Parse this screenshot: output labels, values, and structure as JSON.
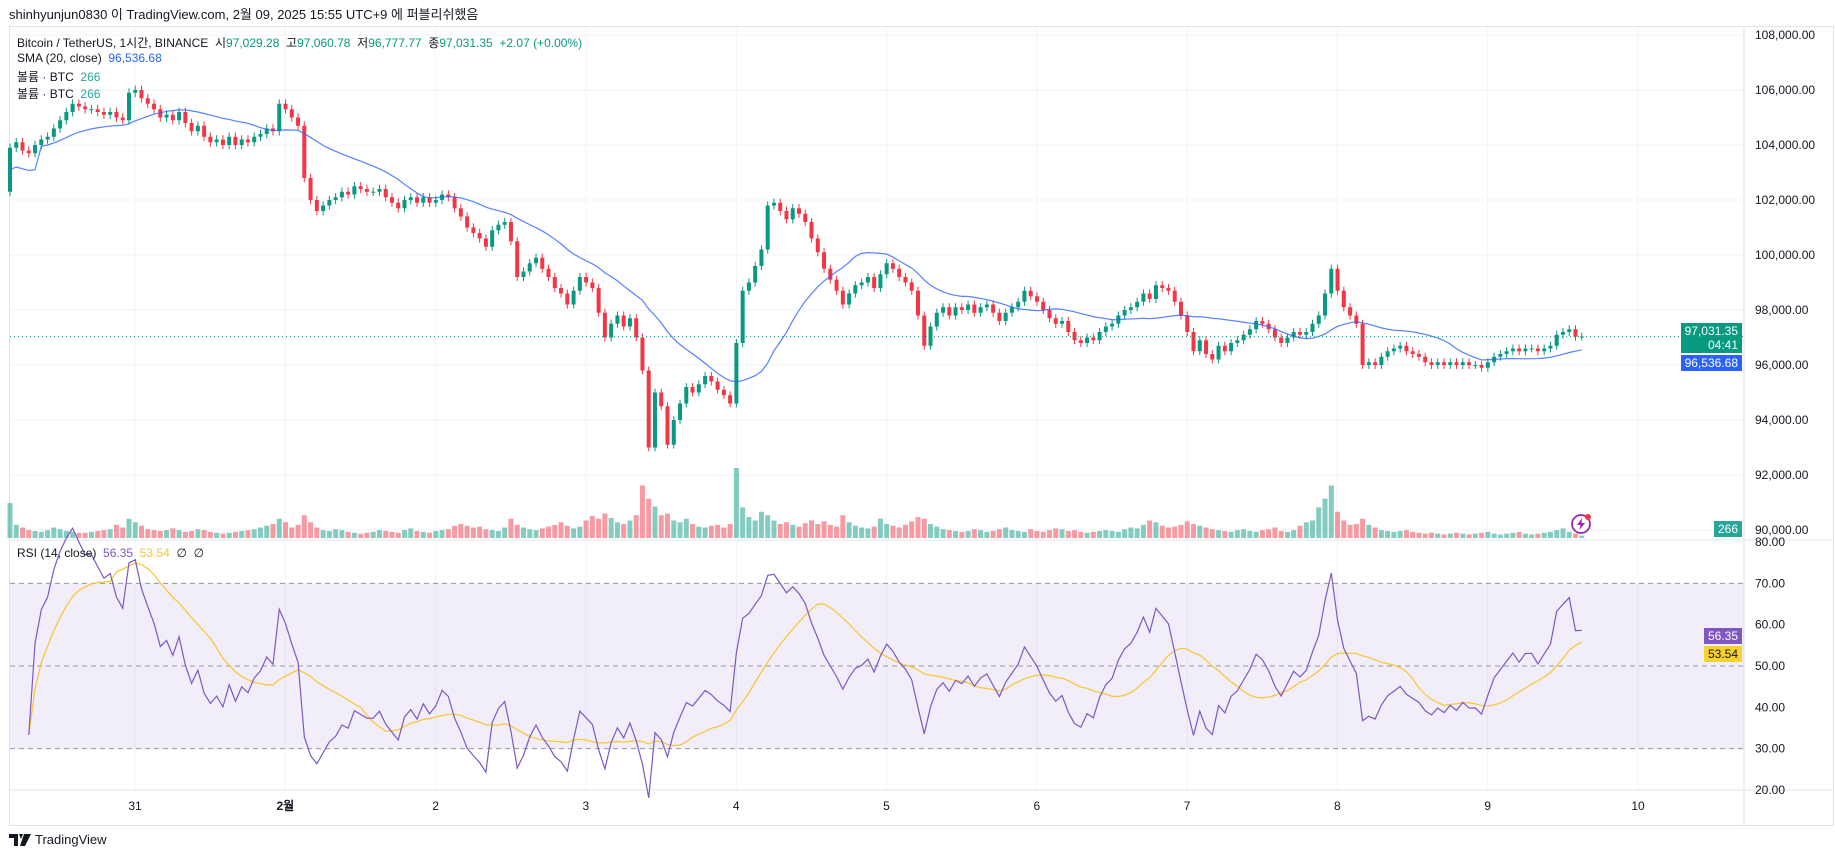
{
  "published": "shinhyunjun0830 이 TradingView.com, 2월 09, 2025 15:55 UTC+9 에 퍼블리쉬했음",
  "legend": {
    "symbol": "Bitcoin / TetherUS, 1시간, BINANCE",
    "open_label": "시",
    "open": "97,029.28",
    "high_label": "고",
    "high": "97,060.78",
    "low_label": "저",
    "low": "96,777.77",
    "close_label": "종",
    "close": "97,031.35",
    "change": "+2.07 (+0.00%)",
    "sma_label": "SMA (20, close)",
    "sma_value": "96,536.68",
    "volume_label": "볼륨 · BTC",
    "volume_value": "266",
    "volume_label2": "볼륨 · BTC",
    "volume_value2": "266",
    "rsi_label": "RSI (14, close)",
    "rsi_value": "56.35",
    "rsi_ma_value": "53.54",
    "rsi_extra1": "∅",
    "rsi_extra2": "∅"
  },
  "price_tags": {
    "last": "97,031.35",
    "countdown": "04:41",
    "sma": "96,536.68",
    "volume": "266",
    "rsi": "56.35",
    "rsi_ma": "53.54"
  },
  "icons": {
    "alert": "lightning-icon",
    "logo": "tradingview-logo-icon"
  },
  "logo_text": "TradingView",
  "colors": {
    "up": "#089981",
    "down": "#f23645",
    "sma": "#2962ff",
    "rsi": "#7e57c2",
    "rsi_ma": "#f7c52f",
    "rsi_band": "#7e57c2"
  },
  "chart_data": {
    "type": "candlestick",
    "interval": "1h",
    "first_open": 102300,
    "closes": [
      103900,
      104100,
      103800,
      103700,
      104000,
      104200,
      104300,
      104600,
      104900,
      105200,
      105500,
      105400,
      105300,
      105300,
      105200,
      105100,
      105200,
      105000,
      104900,
      105900,
      106000,
      105700,
      105500,
      105300,
      105000,
      105100,
      104900,
      105200,
      104800,
      104500,
      104700,
      104300,
      104100,
      104200,
      104000,
      104300,
      104000,
      104200,
      104100,
      104300,
      104400,
      104600,
      104500,
      105500,
      105300,
      105000,
      104700,
      102800,
      102000,
      101600,
      101800,
      102000,
      102100,
      102300,
      102200,
      102500,
      102400,
      102300,
      102300,
      102400,
      102100,
      101900,
      101700,
      102000,
      102100,
      101900,
      102100,
      101900,
      102000,
      102200,
      102100,
      101700,
      101400,
      101000,
      100800,
      100600,
      100300,
      100900,
      101100,
      101200,
      100500,
      99200,
      99400,
      99700,
      99900,
      99500,
      99200,
      98800,
      98600,
      98200,
      98700,
      99200,
      99000,
      98800,
      97900,
      97000,
      97500,
      97800,
      97400,
      97700,
      97000,
      95800,
      93000,
      95000,
      94500,
      93100,
      94000,
      94600,
      95200,
      95000,
      95300,
      95600,
      95400,
      95100,
      94900,
      94600,
      96800,
      98700,
      99000,
      99600,
      100200,
      101800,
      101900,
      101600,
      101300,
      101700,
      101500,
      101200,
      100600,
      100100,
      99500,
      99100,
      98700,
      98200,
      98600,
      98900,
      99000,
      99200,
      98800,
      99300,
      99700,
      99500,
      99200,
      99000,
      98700,
      97800,
      96700,
      97400,
      97900,
      98100,
      97800,
      98100,
      98000,
      98200,
      97900,
      98100,
      98200,
      97900,
      97600,
      97900,
      98100,
      98300,
      98700,
      98500,
      98300,
      98000,
      97700,
      97500,
      97600,
      97200,
      96900,
      96800,
      97000,
      96900,
      97200,
      97400,
      97500,
      97800,
      98000,
      98100,
      98300,
      98600,
      98400,
      98900,
      98800,
      98700,
      98300,
      97800,
      97200,
      96500,
      96900,
      96400,
      96200,
      96700,
      96500,
      96800,
      96900,
      97100,
      97300,
      97600,
      97500,
      97300,
      97000,
      96800,
      97000,
      97200,
      97100,
      97200,
      97500,
      97800,
      98600,
      99500,
      98700,
      98100,
      97800,
      97500,
      96000,
      96100,
      96000,
      96300,
      96500,
      96600,
      96700,
      96500,
      96400,
      96300,
      96100,
      96000,
      96100,
      96000,
      96100,
      96000,
      96100,
      96000,
      96000,
      95900,
      96100,
      96300,
      96400,
      96500,
      96600,
      96500,
      96600,
      96600,
      96500,
      96600,
      96700,
      97100,
      97200,
      97300,
      97029.28,
      97031.35
    ],
    "volumes": [
      4000,
      1500,
      1200,
      900,
      800,
      700,
      900,
      1200,
      1000,
      800,
      700,
      600,
      600,
      700,
      800,
      900,
      1000,
      1500,
      1200,
      2200,
      1800,
      1400,
      1000,
      900,
      800,
      900,
      1100,
      900,
      700,
      800,
      1000,
      900,
      700,
      600,
      500,
      600,
      700,
      800,
      900,
      1000,
      1200,
      1400,
      1600,
      2200,
      1800,
      1200,
      1500,
      2600,
      1800,
      1200,
      900,
      800,
      1000,
      900,
      700,
      600,
      500,
      600,
      700,
      900,
      800,
      700,
      600,
      900,
      1100,
      800,
      700,
      600,
      800,
      900,
      1000,
      1400,
      1600,
      1400,
      1200,
      1300,
      1000,
      900,
      800,
      1200,
      2200,
      1500,
      1200,
      1000,
      900,
      1100,
      1300,
      1500,
      1800,
      1400,
      1100,
      1300,
      2000,
      2500,
      2200,
      2800,
      2300,
      1800,
      1600,
      2000,
      2600,
      6000,
      4500,
      3600,
      2600,
      2800,
      2000,
      1800,
      2200,
      1600,
      1300,
      1200,
      1400,
      1500,
      1200,
      1600,
      8000,
      3500,
      2400,
      2000,
      3000,
      2600,
      2000,
      1600,
      1800,
      1500,
      1300,
      1700,
      2000,
      1600,
      1900,
      1500,
      1300,
      2600,
      1800,
      1400,
      1200,
      1100,
      1300,
      2200,
      1600,
      1400,
      1200,
      1500,
      1900,
      2400,
      2200,
      1600,
      1300,
      1000,
      900,
      800,
      700,
      800,
      1000,
      900,
      700,
      800,
      1000,
      1200,
      900,
      800,
      700,
      1000,
      800,
      700,
      900,
      1100,
      1000,
      800,
      900,
      700,
      600,
      700,
      800,
      900,
      800,
      700,
      1000,
      1200,
      1100,
      1500,
      2000,
      1800,
      1400,
      1200,
      1300,
      1500,
      1900,
      1600,
      1400,
      1200,
      1000,
      900,
      800,
      700,
      900,
      1000,
      800,
      700,
      900,
      1000,
      1200,
      800,
      700,
      900,
      1400,
      1800,
      2000,
      3500,
      4500,
      6000,
      3000,
      2000,
      1500,
      1600,
      2200,
      1500,
      1200,
      900,
      800,
      700,
      800,
      900,
      700,
      600,
      500,
      600,
      500,
      400,
      500,
      600,
      500,
      400,
      500,
      600,
      700,
      500,
      400,
      500,
      600,
      700,
      500,
      400,
      500,
      600,
      700,
      900,
      1100,
      700,
      500,
      266
    ],
    "last_price": 97031.35,
    "sma_period": 20,
    "rsi_period": 14,
    "price_ylim": [
      90000,
      108000
    ],
    "price_ticks": [
      "108,000.00",
      "106,000.00",
      "104,000.00",
      "102,000.00",
      "100,000.00",
      "98,000.00",
      "96,000.00",
      "94,000.00",
      "92,000.00",
      "90,000.00"
    ],
    "rsi_ylim": [
      20,
      80
    ],
    "rsi_ticks": [
      "80.00",
      "70.00",
      "60.00",
      "50.00",
      "40.00",
      "30.00",
      "20.00"
    ],
    "rsi_bands": [
      30,
      50,
      70
    ],
    "x_ticks": [
      "31",
      "2월",
      "2",
      "3",
      "4",
      "5",
      "6",
      "7",
      "8",
      "9",
      "10"
    ],
    "grid": true
  }
}
